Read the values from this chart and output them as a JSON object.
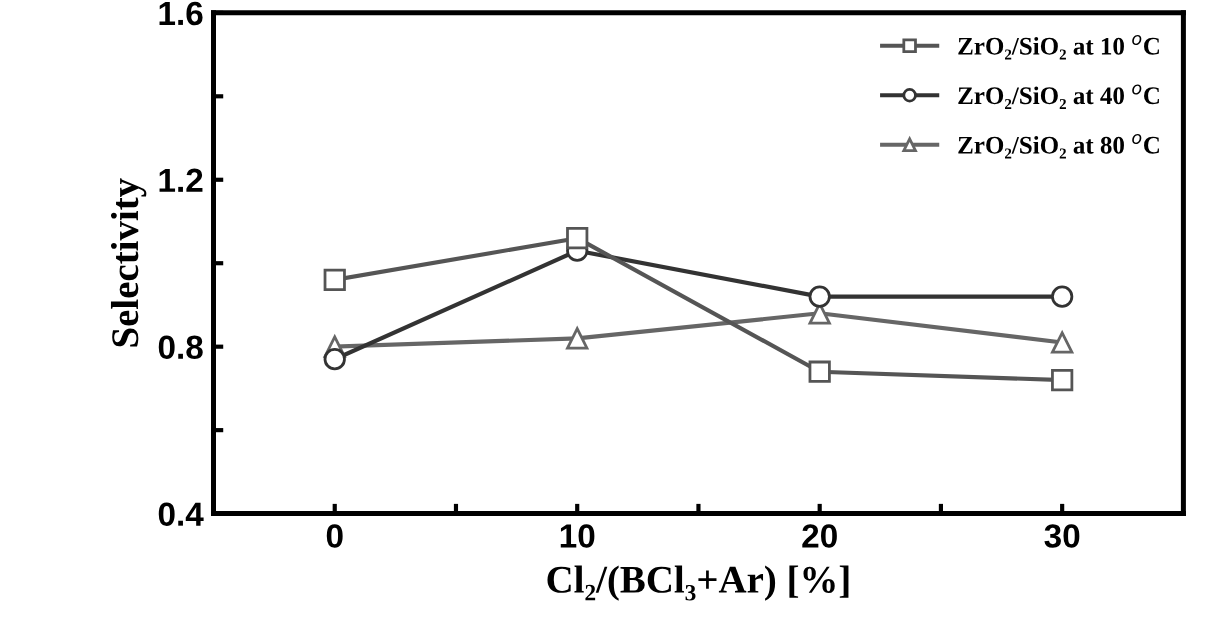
{
  "chart_data": {
    "type": "line",
    "xlabel": "Cl₂/(BCl₃+Ar) [%]",
    "ylabel": "Selectivity",
    "x": [
      0,
      10,
      20,
      30
    ],
    "series": [
      {
        "name": "ZrO₂/SiO₂ at 10 $^{o}$C",
        "color": "#555555",
        "marker": "square",
        "values": [
          0.96,
          1.06,
          0.74,
          0.72
        ]
      },
      {
        "name": "ZrO₂/SiO₂ at 40 $^{o}$C",
        "color": "#333333",
        "marker": "circle",
        "values": [
          0.77,
          1.03,
          0.92,
          0.92
        ]
      },
      {
        "name": "ZrO₂/SiO₂ at 80 $^{o}$C",
        "color": "#666666",
        "marker": "triangle",
        "values": [
          0.8,
          0.82,
          0.88,
          0.81
        ]
      }
    ],
    "xlim": [
      -5,
      35
    ],
    "xticks": [
      0,
      {
        "value": 5,
        "label": null
      },
      10,
      {
        "value": 15,
        "label": null
      },
      20,
      {
        "value": 25,
        "label": null
      },
      30
    ],
    "ylim": [
      0.4,
      1.6
    ],
    "yticks": [
      0.4,
      {
        "value": 0.6,
        "label": null
      },
      0.8,
      {
        "value": 1.0,
        "label": null
      },
      1.2,
      {
        "value": 1.4,
        "label": null
      },
      1.6
    ],
    "grid": false,
    "legend": "top right",
    "line_style": "solid"
  }
}
